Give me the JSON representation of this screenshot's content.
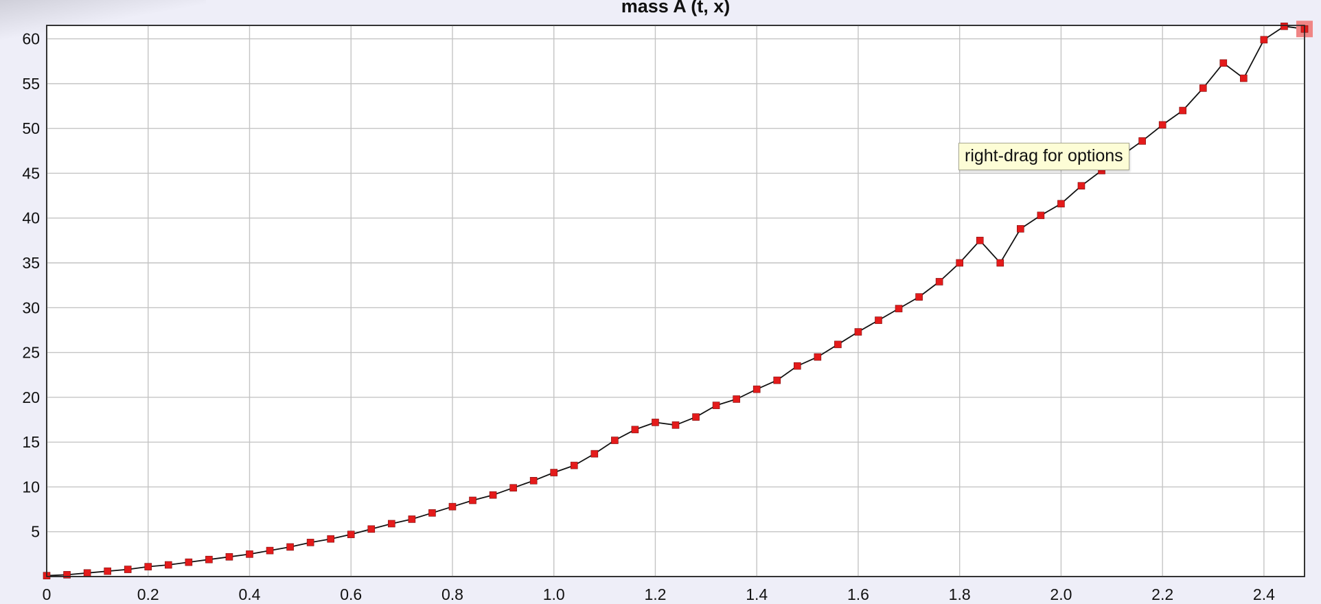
{
  "window": {
    "tooltip_text": "right-drag for options"
  },
  "colors": {
    "marker": "#e41b1b",
    "line": "#111111",
    "grid": "#c4c4c4",
    "background": "#eeeef8"
  },
  "chart_data": {
    "type": "line",
    "title": "mass A (t, x)",
    "xlabel": "",
    "ylabel": "",
    "xlim": [
      0,
      2.48
    ],
    "ylim": [
      0,
      61.5
    ],
    "x_ticks": [
      "0",
      "0.2",
      "0.4",
      "0.6",
      "0.8",
      "1.0",
      "1.2",
      "1.4",
      "1.6",
      "1.8",
      "2.0",
      "2.2",
      "2.4"
    ],
    "y_ticks": [
      "5",
      "10",
      "15",
      "20",
      "25",
      "30",
      "35",
      "40",
      "45",
      "50",
      "55",
      "60"
    ],
    "grid": true,
    "legend": "none",
    "markers": "square",
    "selected_point_index": 62,
    "series": [
      {
        "x": [
          0,
          0.04,
          0.08,
          0.12,
          0.16,
          0.2,
          0.24,
          0.28,
          0.32,
          0.36,
          0.4,
          0.44,
          0.48,
          0.52,
          0.56,
          0.6,
          0.64,
          0.68,
          0.72,
          0.76,
          0.8,
          0.84,
          0.88,
          0.92,
          0.96,
          1.0,
          1.04,
          1.08,
          1.12,
          1.16,
          1.2,
          1.24,
          1.28,
          1.32,
          1.36,
          1.4,
          1.44,
          1.48,
          1.52,
          1.56,
          1.6,
          1.64,
          1.68,
          1.72,
          1.76,
          1.8,
          1.84,
          1.88,
          1.92,
          1.96,
          2.0,
          2.04,
          2.08,
          2.12,
          2.16,
          2.2,
          2.24,
          2.28,
          2.32,
          2.36,
          2.4,
          2.44,
          2.48
        ],
        "y": [
          0.1,
          0.2,
          0.4,
          0.6,
          0.8,
          1.1,
          1.3,
          1.6,
          1.9,
          2.2,
          2.5,
          2.9,
          3.3,
          3.8,
          4.2,
          4.7,
          5.3,
          5.9,
          6.4,
          7.1,
          7.8,
          8.5,
          9.1,
          9.9,
          10.7,
          11.6,
          12.4,
          13.7,
          15.2,
          16.4,
          17.2,
          16.9,
          17.8,
          19.1,
          19.8,
          20.9,
          21.9,
          23.5,
          24.5,
          25.9,
          27.3,
          28.6,
          29.9,
          31.2,
          32.9,
          35.0,
          37.5,
          35.0,
          38.8,
          40.3,
          41.6,
          43.6,
          45.3,
          47.0,
          48.6,
          50.4,
          52.0,
          54.5,
          57.3,
          55.6,
          59.9,
          61.4,
          61.1
        ]
      }
    ]
  }
}
